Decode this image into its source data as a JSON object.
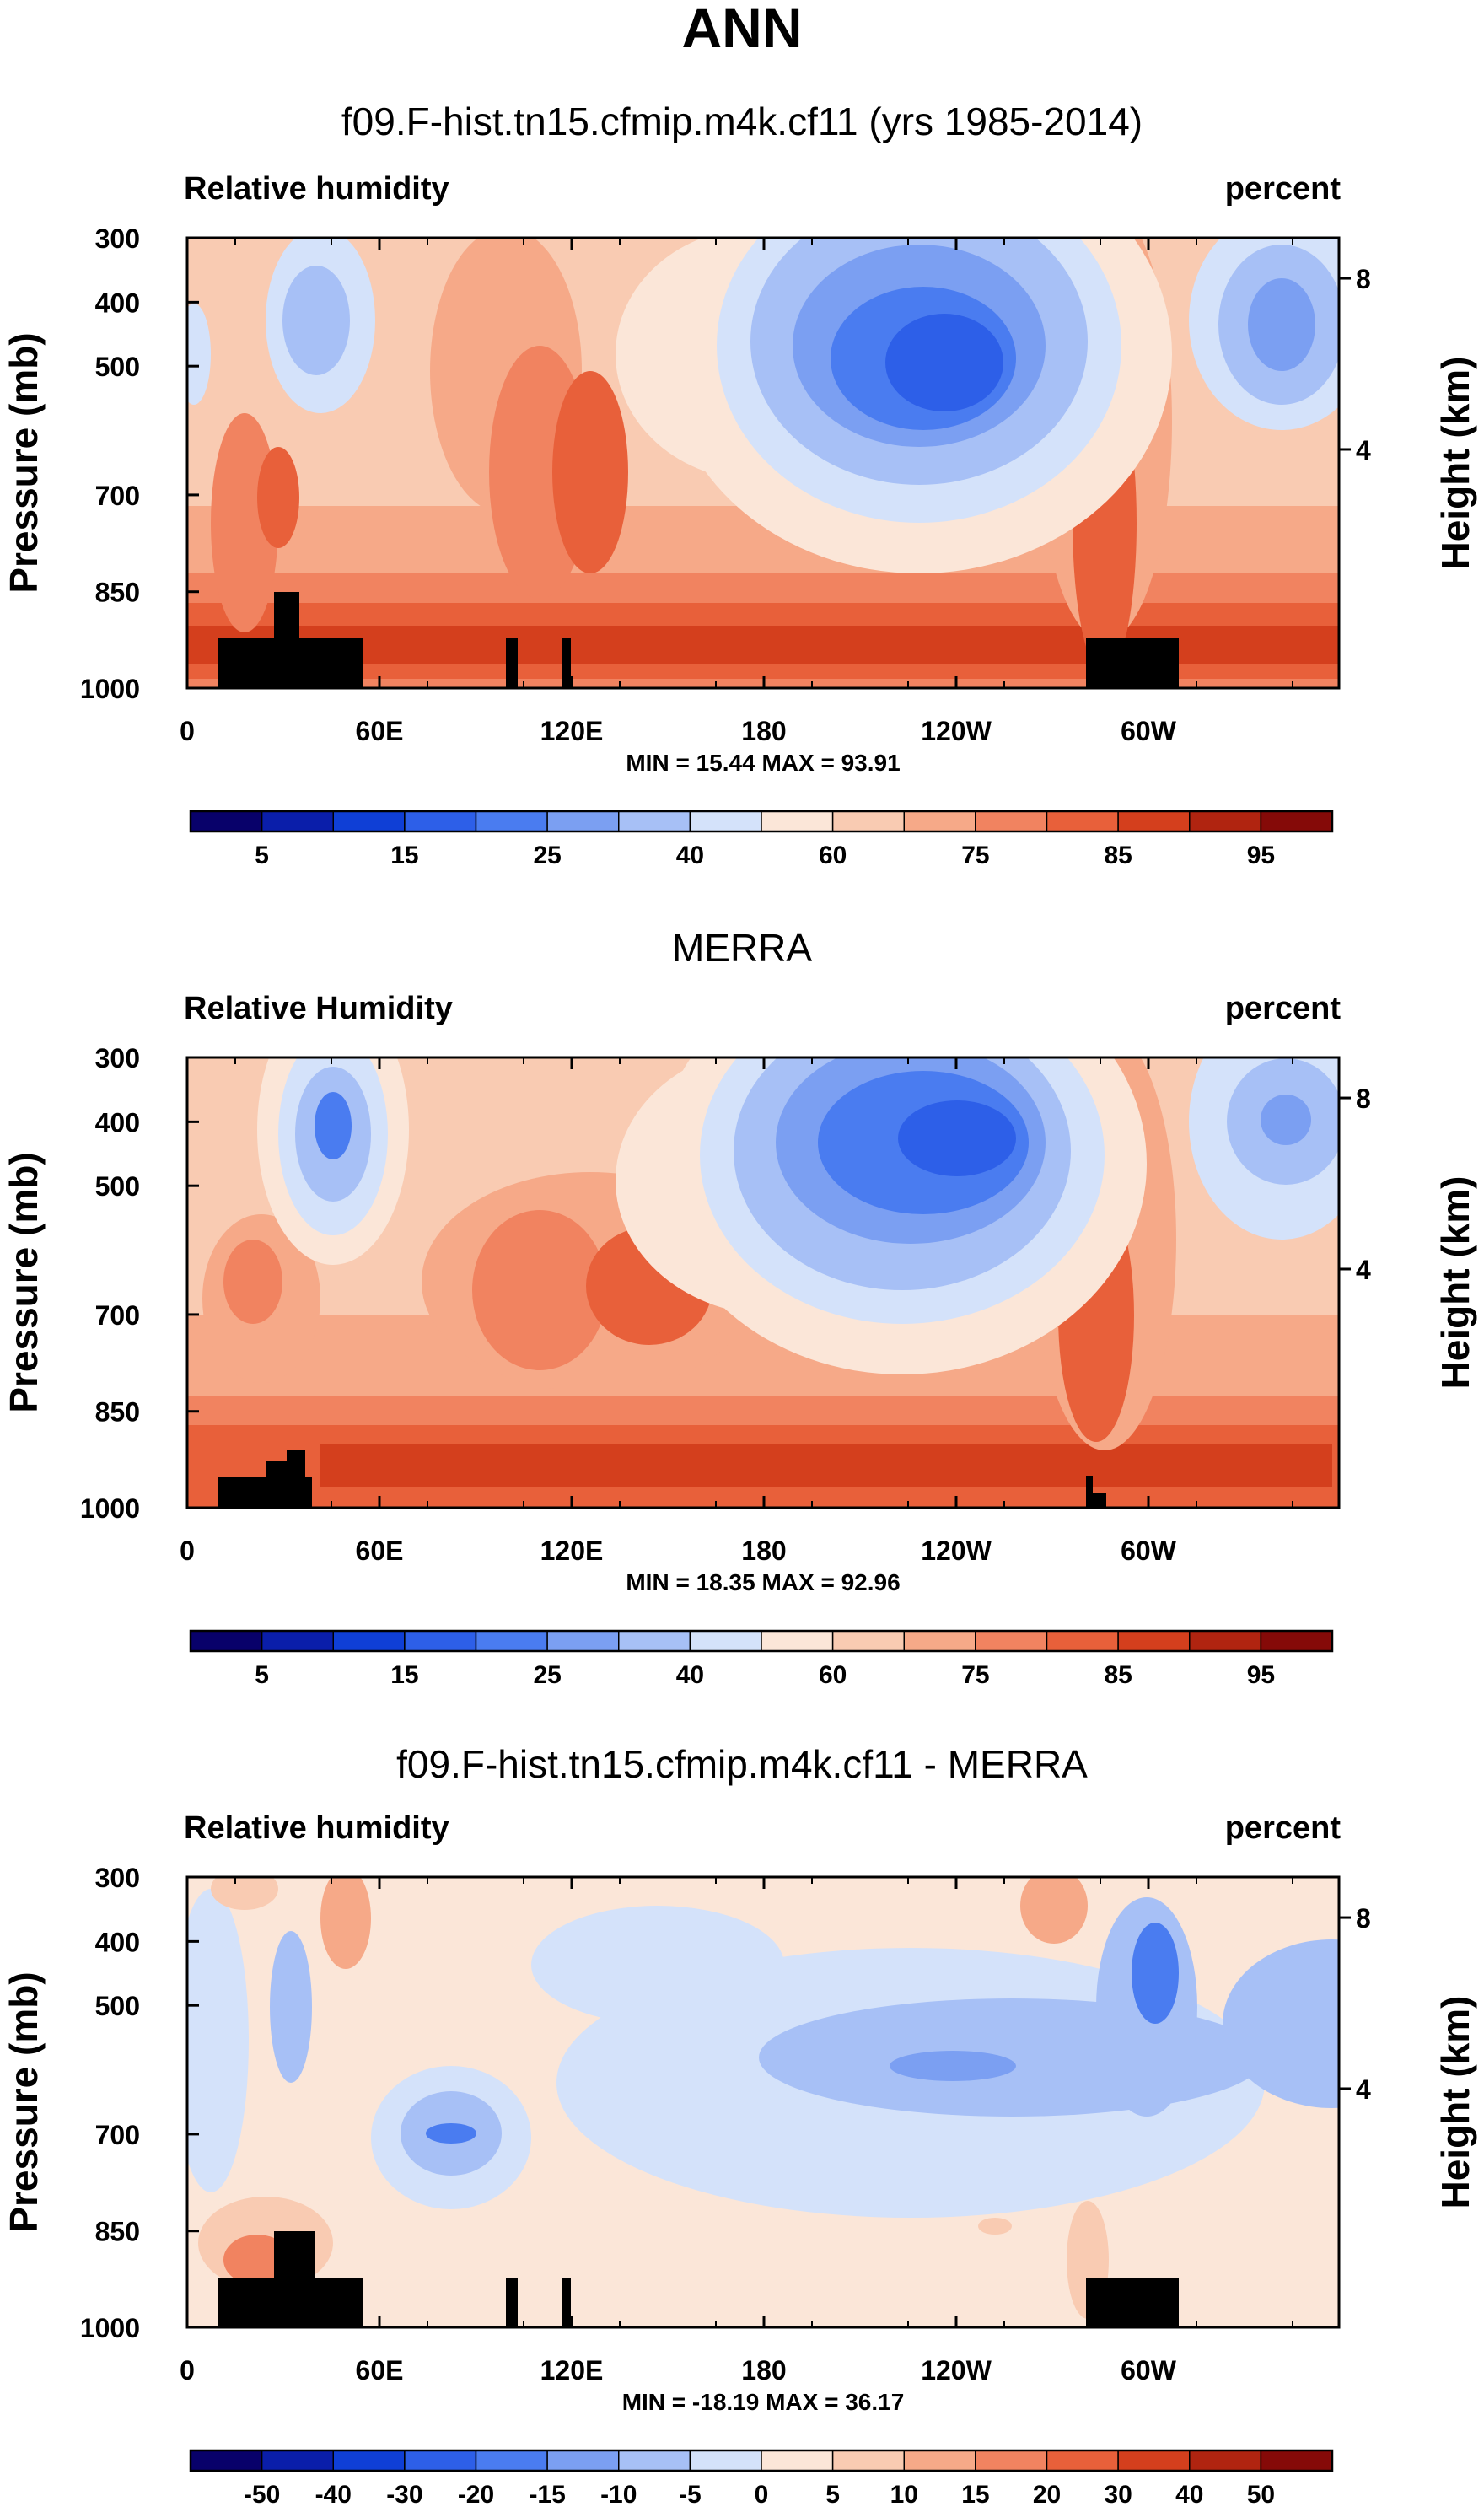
{
  "page_title": "ANN",
  "chart_data": [
    {
      "type": "heatmap",
      "title": "f09.F-hist.tn15.cfmip.m4k.cf11 (yrs 1985-2014)",
      "left_label": "Relative humidity",
      "right_label": "percent",
      "ylabel": "Pressure (mb)",
      "y2label": "Height (km)",
      "x_ticks": [
        "0",
        "60E",
        "120E",
        "180",
        "120W",
        "60W"
      ],
      "y_ticks": [
        "300",
        "400",
        "500",
        "700",
        "850",
        "1000"
      ],
      "y2_ticks": [
        "8",
        "4"
      ],
      "stats": "MIN = 15.44  MAX = 93.91",
      "colorbar_labels": [
        "5",
        "15",
        "25",
        "40",
        "60",
        "75",
        "85",
        "95"
      ],
      "colorbar_levels": 16
    },
    {
      "type": "heatmap",
      "title": "MERRA",
      "left_label": "Relative Humidity",
      "right_label": "percent",
      "ylabel": "Pressure (mb)",
      "y2label": "Height (km)",
      "x_ticks": [
        "0",
        "60E",
        "120E",
        "180",
        "120W",
        "60W"
      ],
      "y_ticks": [
        "300",
        "400",
        "500",
        "700",
        "850",
        "1000"
      ],
      "y2_ticks": [
        "8",
        "4"
      ],
      "stats": "MIN = 18.35  MAX = 92.96",
      "colorbar_labels": [
        "5",
        "15",
        "25",
        "40",
        "60",
        "75",
        "85",
        "95"
      ],
      "colorbar_levels": 16
    },
    {
      "type": "heatmap",
      "title": "f09.F-hist.tn15.cfmip.m4k.cf11 - MERRA",
      "left_label": "Relative humidity",
      "right_label": "percent",
      "ylabel": "Pressure (mb)",
      "y2label": "Height (km)",
      "x_ticks": [
        "0",
        "60E",
        "120E",
        "180",
        "120W",
        "60W"
      ],
      "y_ticks": [
        "300",
        "400",
        "500",
        "700",
        "850",
        "1000"
      ],
      "y2_ticks": [
        "8",
        "4"
      ],
      "stats": "MIN = -18.19  MAX = 36.17",
      "colorbar_labels": [
        "-50",
        "-40",
        "-30",
        "-20",
        "-15",
        "-10",
        "-5",
        "0",
        "5",
        "10",
        "15",
        "20",
        "30",
        "40",
        "50"
      ],
      "colorbar_levels": 16
    }
  ],
  "colors": {
    "palette": [
      "#08016a",
      "#0a1eaa",
      "#0f3fd6",
      "#2d5fe8",
      "#4a7cf0",
      "#7b9ff2",
      "#a7c0f6",
      "#d4e2fa",
      "#fbe6d8",
      "#f9cbb2",
      "#f6a988",
      "#f18360",
      "#e8603a",
      "#d43f1d",
      "#b02410",
      "#850a08"
    ]
  }
}
